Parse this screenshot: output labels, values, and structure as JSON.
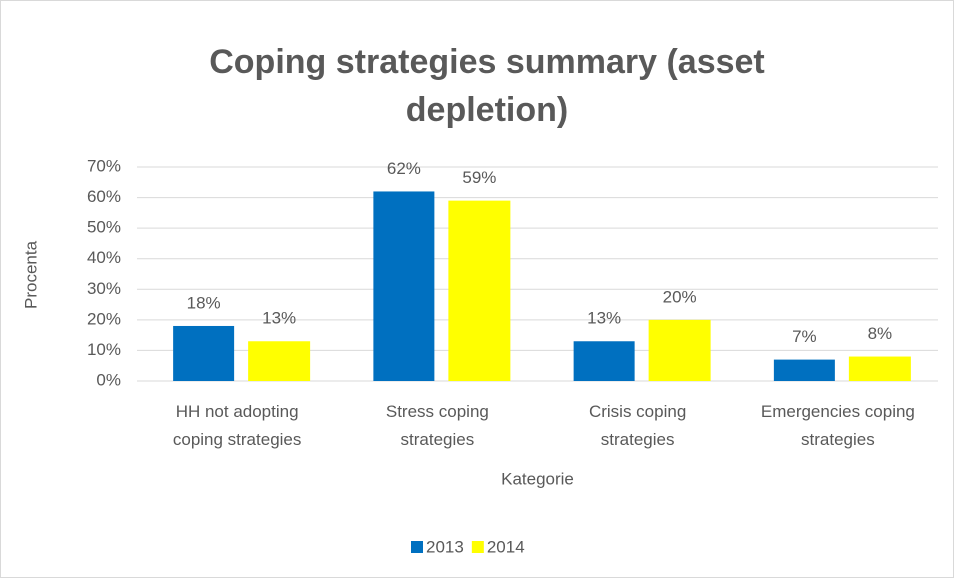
{
  "chart_data": {
    "type": "bar",
    "title": "Coping strategies summary (asset\ndepletion)",
    "x_label": "Kategorie",
    "y_label": "Procenta",
    "categories": [
      "HH not adopting\ncoping strategies",
      "Stress coping\nstrategies",
      "Crisis coping\nstrategies",
      "Emergencies coping\nstrategies"
    ],
    "series": [
      {
        "name": "2013",
        "color": "#0070c0",
        "values": [
          18,
          62,
          13,
          7
        ],
        "value_labels": [
          "18%",
          "62%",
          "13%",
          "7%"
        ]
      },
      {
        "name": "2014",
        "color": "#ffff00",
        "values": [
          13,
          59,
          20,
          8
        ],
        "value_labels": [
          "13%",
          "59%",
          "20%",
          "8%"
        ]
      }
    ],
    "ylim": [
      0,
      70
    ],
    "yticks": [
      {
        "value": 0,
        "label": "0%"
      },
      {
        "value": 10,
        "label": "10%"
      },
      {
        "value": 20,
        "label": "20%"
      },
      {
        "value": 30,
        "label": "30%"
      },
      {
        "value": 40,
        "label": "40%"
      },
      {
        "value": 50,
        "label": "50%"
      },
      {
        "value": 60,
        "label": "60%"
      },
      {
        "value": 70,
        "label": "70%"
      }
    ],
    "grid": true,
    "legend": "bottom"
  }
}
